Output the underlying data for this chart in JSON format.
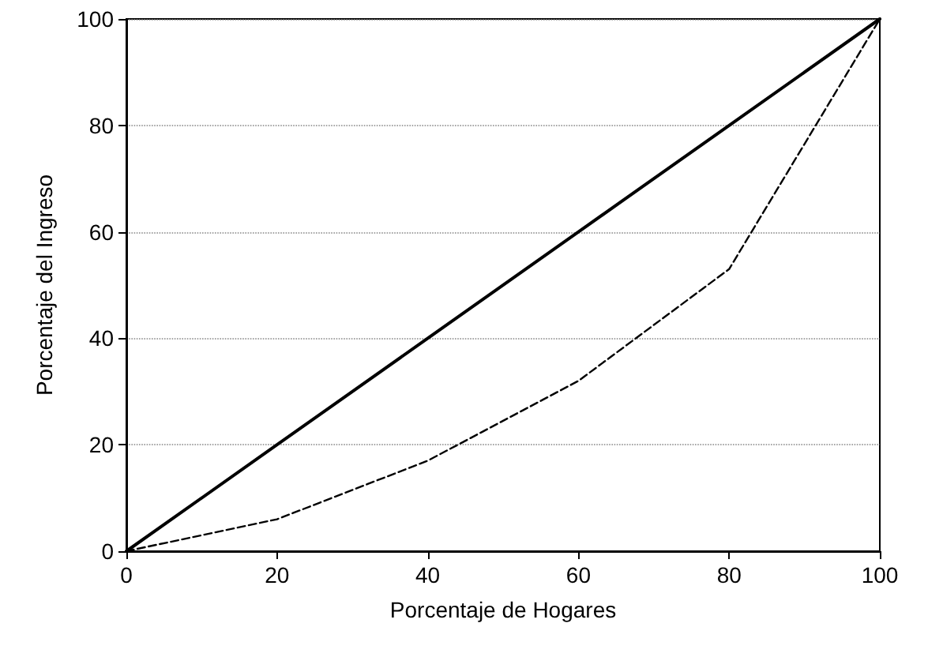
{
  "chart_data": {
    "type": "line",
    "xlabel": "Porcentaje de Hogares",
    "ylabel": "Porcentaje del Ingreso",
    "x": [
      0,
      20,
      40,
      60,
      80,
      100
    ],
    "series": [
      {
        "color": "#000000",
        "line_style": "solid",
        "values": [
          0,
          20,
          40,
          60,
          80,
          100
        ]
      },
      {
        "color": "#000000",
        "line_style": "dashed",
        "values": [
          0,
          6,
          17,
          32,
          53,
          100
        ]
      }
    ],
    "xlim": [
      0,
      100
    ],
    "xticks": [
      0,
      20,
      40,
      60,
      80,
      100
    ],
    "ylim": [
      0,
      100
    ],
    "yticks": [
      0,
      20,
      40,
      60,
      80,
      100
    ],
    "grid": "y",
    "marker": "none"
  }
}
